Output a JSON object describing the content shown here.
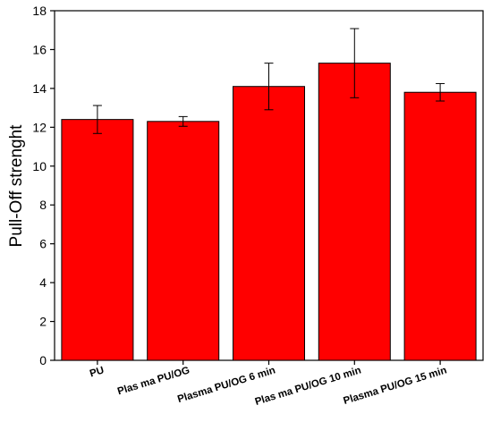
{
  "chart_data": {
    "type": "bar",
    "categories": [
      "PU",
      "Plas ma PU/OG",
      "Plasma PU/OG 6 min",
      "Plas ma PU/OG 10 min",
      "Plasma PU/OG 15 min"
    ],
    "values": [
      12.4,
      12.3,
      14.1,
      15.3,
      13.8
    ],
    "errors": [
      0.72,
      0.25,
      1.2,
      1.78,
      0.45
    ],
    "ylabel": "Pull-Off strenght",
    "xlabel": "",
    "title": "",
    "ylim": [
      0,
      18
    ],
    "yticks": [
      0,
      2,
      4,
      6,
      8,
      10,
      12,
      14,
      16,
      18
    ],
    "grid": false,
    "colors": {
      "bar_fill": "#ff0000",
      "bar_edge": "#000000",
      "axis": "#000000"
    }
  }
}
